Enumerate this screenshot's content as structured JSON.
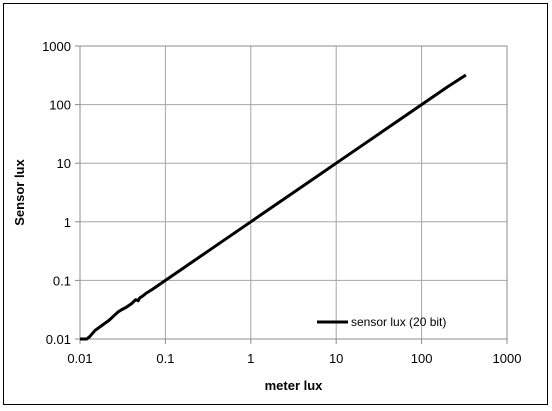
{
  "chart_data": {
    "type": "line",
    "xscale": "log",
    "yscale": "log",
    "xlim": [
      0.01,
      1000
    ],
    "ylim": [
      0.01,
      1000
    ],
    "xticks": [
      "0.01",
      "0.1",
      "1",
      "10",
      "100",
      "1000"
    ],
    "yticks": [
      "0.01",
      "0.1",
      "1",
      "10",
      "100",
      "1000"
    ],
    "xlabel": "meter lux",
    "ylabel": "Sensor lux",
    "grid": true,
    "legend_position": "bottom-right",
    "series": [
      {
        "name": "sensor lux (20 bit)",
        "color": "#000000",
        "x": [
          0.01,
          0.012,
          0.013,
          0.015,
          0.018,
          0.02,
          0.022,
          0.025,
          0.028,
          0.03,
          0.035,
          0.04,
          0.045,
          0.048,
          0.05,
          0.055,
          0.06,
          0.07,
          0.08,
          0.1,
          0.12,
          0.15,
          0.2,
          0.3,
          0.5,
          1,
          2,
          5,
          10,
          20,
          50,
          100,
          200,
          330
        ],
        "y": [
          0.01,
          0.01,
          0.011,
          0.014,
          0.017,
          0.019,
          0.021,
          0.025,
          0.029,
          0.031,
          0.035,
          0.04,
          0.047,
          0.045,
          0.05,
          0.055,
          0.061,
          0.07,
          0.08,
          0.1,
          0.12,
          0.15,
          0.2,
          0.3,
          0.5,
          1,
          2,
          5,
          10,
          20,
          50,
          100,
          200,
          320
        ]
      }
    ]
  }
}
